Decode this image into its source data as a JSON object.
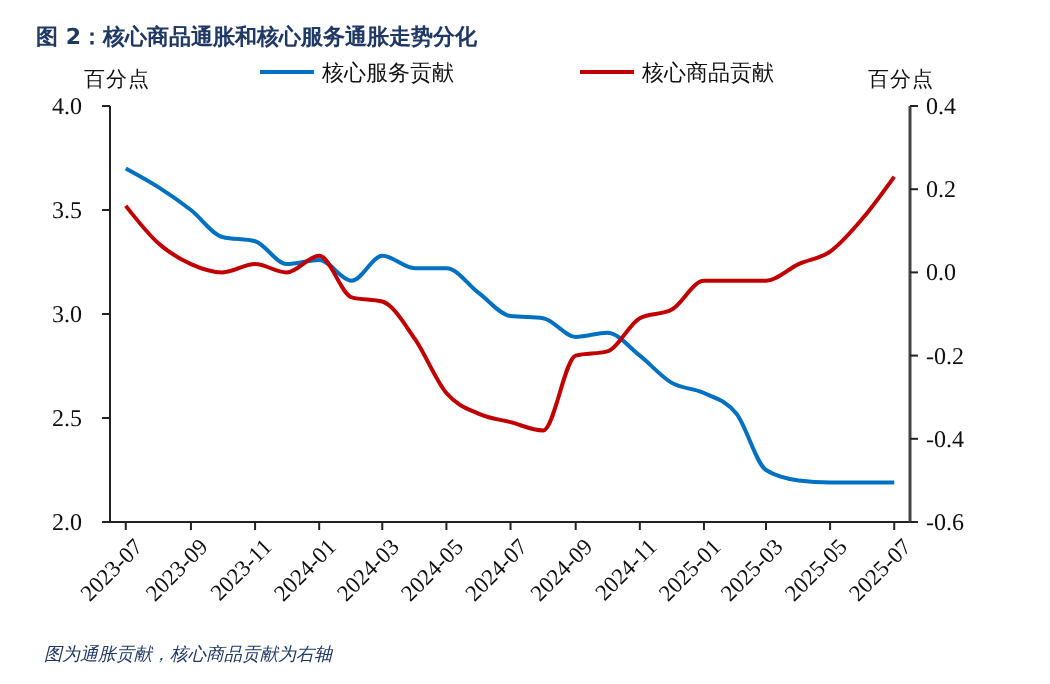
{
  "chart_data": {
    "type": "line",
    "title": "图 2：核心商品通胀和核心服务通胀走势分化",
    "ylabel": "百分点",
    "y2label": "百分点",
    "x": [
      "2023-07",
      "2023-08",
      "2023-09",
      "2023-10",
      "2023-11",
      "2023-12",
      "2024-01",
      "2024-02",
      "2024-03",
      "2024-04",
      "2024-05",
      "2024-06",
      "2024-07",
      "2024-08",
      "2024-09",
      "2024-10",
      "2024-11",
      "2024-12",
      "2025-01",
      "2025-02",
      "2025-03",
      "2025-04",
      "2025-05",
      "2025-06",
      "2025-07"
    ],
    "series": [
      {
        "name": "核心服务贡献",
        "color": "#0070c0",
        "values": [
          3.7,
          3.61,
          3.5,
          3.37,
          3.35,
          3.24,
          3.26,
          3.16,
          3.28,
          3.22,
          3.22,
          3.1,
          2.99,
          2.98,
          2.89,
          2.91,
          2.8,
          2.67,
          2.62,
          2.52,
          2.25,
          2.2,
          2.19,
          2.19,
          2.19
        ]
      },
      {
        "name": "核心商品贡献",
        "color": "#c00000",
        "axis": "y2",
        "values": [
          0.16,
          0.07,
          0.02,
          0.0,
          0.02,
          0.0,
          0.04,
          -0.06,
          -0.07,
          -0.16,
          -0.29,
          -0.34,
          -0.36,
          -0.38,
          -0.2,
          -0.19,
          -0.11,
          -0.09,
          -0.02,
          -0.02,
          -0.02,
          0.02,
          0.05,
          0.13,
          0.23
        ]
      }
    ],
    "xlim": [
      "2023-06-16",
      "2025-07-16"
    ],
    "xticks": [
      "2023-07",
      "2023-09",
      "2023-11",
      "2024-01",
      "2024-03",
      "2024-05",
      "2024-07",
      "2024-09",
      "2024-11",
      "2025-01",
      "2025-03",
      "2025-05",
      "2025-07"
    ],
    "ylim": [
      2.0,
      4.0
    ],
    "yticks": [
      {
        "value": 2.0,
        "label": "2.0"
      },
      {
        "value": 2.5,
        "label": "2.5"
      },
      {
        "value": 3.0,
        "label": "3.0"
      },
      {
        "value": 3.5,
        "label": "3.5"
      },
      {
        "value": 4.0,
        "label": "4.0"
      }
    ],
    "y2lim": [
      -0.6,
      0.4
    ],
    "y2ticks": [
      -0.6,
      -0.4,
      -0.2,
      {
        "value": 0.0,
        "label": "0.0"
      },
      0.2,
      0.4
    ],
    "legend": "top",
    "grid": false,
    "marker": "none",
    "line_style": "solid",
    "annotations": [
      "图为通胀贡献，核心商品贡献为右轴"
    ]
  }
}
